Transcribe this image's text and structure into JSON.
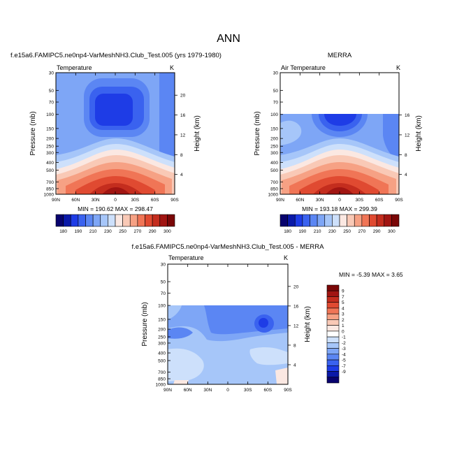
{
  "page": {
    "main_title": "ANN",
    "case_title": "f.e15a6.FAMIPC5.ne0np4-VarMeshNH3.Club_Test.005 (yrs 1979-1980)",
    "obs_title": "MERRA",
    "diff_title": "f.e15a6.FAMIPC5.ne0np4-VarMeshNH3.Club_Test.005 - MERRA"
  },
  "colors": {
    "abs_levels": [
      "#08036e",
      "#0a19a8",
      "#1e3ce6",
      "#3a62ef",
      "#5b86f3",
      "#7ea6f6",
      "#a6c6f9",
      "#cde0fb",
      "#fbe8e2",
      "#f9c9b6",
      "#f6a184",
      "#f07556",
      "#e04a31",
      "#c42d1e",
      "#a11512",
      "#7a0707"
    ],
    "diff_levels": [
      "#08036e",
      "#0a19a8",
      "#1e3ce6",
      "#3a62ef",
      "#5b86f3",
      "#7ea6f6",
      "#a6c6f9",
      "#cde0fb",
      "#ffffff",
      "#fbe8e2",
      "#f9c9b6",
      "#f6a184",
      "#f07556",
      "#e04a31",
      "#c42d1e",
      "#a11512",
      "#7a0707"
    ]
  },
  "chart_data": [
    {
      "type": "heatmap",
      "id": "model",
      "left_label": "Temperature",
      "right_label": "K",
      "ylabel": "Pressure (mb)",
      "y2label": "Height (km)",
      "x_ticks": [
        "90N",
        "60N",
        "30N",
        "0",
        "30S",
        "60S",
        "90S"
      ],
      "y_ticks": [
        30,
        50,
        70,
        100,
        150,
        200,
        250,
        300,
        400,
        500,
        700,
        850,
        1000
      ],
      "y2_ticks": [
        20,
        16,
        12,
        8,
        4
      ],
      "ylim": [
        30,
        1000
      ],
      "stats": "MIN = 190.62   MAX = 298.47",
      "min": 190.62,
      "max": 298.47,
      "colorbar_labels": [
        "180",
        "190",
        "210",
        "230",
        "250",
        "270",
        "290",
        "300"
      ]
    },
    {
      "type": "heatmap",
      "id": "obs",
      "left_label": "Air Temperature",
      "right_label": "K",
      "ylabel": "Pressure (mb)",
      "y2label": "Height (km)",
      "x_ticks": [
        "90N",
        "60N",
        "30N",
        "0",
        "30S",
        "60S",
        "90S"
      ],
      "y_ticks": [
        30,
        50,
        70,
        100,
        150,
        200,
        250,
        300,
        400,
        500,
        700,
        850,
        1000
      ],
      "y2_ticks": [
        16,
        12,
        8,
        4
      ],
      "ylim": [
        30,
        1000
      ],
      "data_top": 100,
      "stats": "MIN = 193.18   MAX = 299.39",
      "min": 193.18,
      "max": 299.39,
      "colorbar_labels": [
        "180",
        "190",
        "210",
        "230",
        "250",
        "270",
        "290",
        "300"
      ]
    },
    {
      "type": "heatmap",
      "id": "diff",
      "left_label": "Temperature",
      "right_label": "K",
      "ylabel": "Pressure (mb)",
      "y2label": "Height (km)",
      "x_ticks": [
        "90N",
        "60N",
        "30N",
        "0",
        "30S",
        "60S",
        "90S"
      ],
      "y_ticks": [
        30,
        50,
        70,
        100,
        150,
        200,
        250,
        300,
        400,
        500,
        700,
        850,
        1000
      ],
      "y2_ticks": [
        20,
        16,
        12,
        8,
        4
      ],
      "ylim": [
        30,
        1000
      ],
      "data_top": 100,
      "stats": "MIN = -5.39   MAX =  3.65",
      "min": -5.39,
      "max": 3.65,
      "colorbar_labels": [
        "9",
        "7",
        "5",
        "4",
        "3",
        "2",
        "1",
        "0",
        "-1",
        "-2",
        "-3",
        "-4",
        "-5",
        "-7",
        "-9"
      ]
    }
  ]
}
